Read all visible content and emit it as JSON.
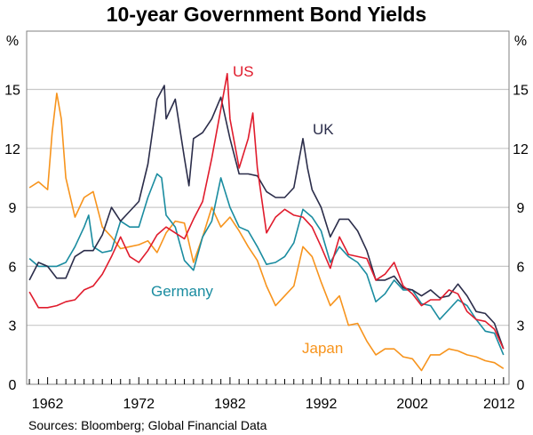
{
  "chart_data": {
    "type": "line",
    "title": "10-year Government Bond Yields",
    "ylabel_left": "%",
    "ylabel_right": "%",
    "source": "Sources: Bloomberg; Global Financial Data",
    "xlim": [
      1959.7,
      2012.6
    ],
    "ylim": [
      0,
      18
    ],
    "yticks": [
      0,
      3,
      6,
      9,
      12,
      15
    ],
    "xticks": [
      1962,
      1972,
      1982,
      1992,
      2002,
      2012
    ],
    "grid": true,
    "legend": "inline labels",
    "series": [
      {
        "name": "Japan",
        "color": "#f7941d",
        "x": [
          1960,
          1961,
          1962,
          1962.5,
          1963,
          1963.5,
          1964,
          1965,
          1966,
          1967,
          1968,
          1969,
          1970,
          1971,
          1972,
          1973,
          1974,
          1975,
          1976,
          1977,
          1978,
          1979,
          1980,
          1981,
          1982,
          1983,
          1984,
          1985,
          1986,
          1987,
          1988,
          1989,
          1990,
          1991,
          1992,
          1993,
          1994,
          1995,
          1996,
          1997,
          1998,
          1999,
          2000,
          2001,
          2002,
          2003,
          2004,
          2005,
          2006,
          2007,
          2008,
          2009,
          2010,
          2011,
          2012
        ],
        "y": [
          10.0,
          10.3,
          9.9,
          12.8,
          14.8,
          13.5,
          10.5,
          8.5,
          9.5,
          9.8,
          8.0,
          7.5,
          6.9,
          7.0,
          7.1,
          7.3,
          6.7,
          7.7,
          8.3,
          8.2,
          6.2,
          7.5,
          9.0,
          8.0,
          8.5,
          7.8,
          7.0,
          6.3,
          5.0,
          4.0,
          4.5,
          5.0,
          7.0,
          6.5,
          5.2,
          4.0,
          4.5,
          3.0,
          3.1,
          2.2,
          1.5,
          1.8,
          1.8,
          1.4,
          1.3,
          0.7,
          1.5,
          1.5,
          1.8,
          1.7,
          1.5,
          1.4,
          1.2,
          1.1,
          0.8
        ]
      },
      {
        "name": "Germany",
        "color": "#1a8ca0",
        "x": [
          1960,
          1961,
          1962,
          1963,
          1964,
          1965,
          1966,
          1966.5,
          1967,
          1968,
          1969,
          1970,
          1971,
          1972,
          1973,
          1974,
          1974.5,
          1975,
          1976,
          1977,
          1978,
          1979,
          1980,
          1981,
          1982,
          1983,
          1984,
          1985,
          1986,
          1987,
          1988,
          1989,
          1990,
          1991,
          1992,
          1993,
          1994,
          1995,
          1996,
          1997,
          1998,
          1999,
          2000,
          2001,
          2002,
          2003,
          2004,
          2005,
          2006,
          2007,
          2008,
          2009,
          2010,
          2011,
          2012
        ],
        "y": [
          6.4,
          6.0,
          6.0,
          6.0,
          6.2,
          7.0,
          8.0,
          8.6,
          7.0,
          6.7,
          6.8,
          8.3,
          8.0,
          8.0,
          9.5,
          10.7,
          10.5,
          8.6,
          8.0,
          6.3,
          5.8,
          7.5,
          8.3,
          10.5,
          9.0,
          8.0,
          7.8,
          7.0,
          6.1,
          6.2,
          6.5,
          7.2,
          8.9,
          8.5,
          7.8,
          6.2,
          7.0,
          6.5,
          6.2,
          5.6,
          4.2,
          4.6,
          5.3,
          4.8,
          4.8,
          4.1,
          4.0,
          3.3,
          3.8,
          4.3,
          4.0,
          3.3,
          2.7,
          2.6,
          1.5
        ]
      },
      {
        "name": "UK",
        "color": "#2b2d4a",
        "x": [
          1960,
          1961,
          1962,
          1963,
          1964,
          1965,
          1966,
          1967,
          1968,
          1969,
          1970,
          1971,
          1972,
          1973,
          1974,
          1974.8,
          1975,
          1976,
          1977,
          1977.5,
          1978,
          1979,
          1980,
          1981,
          1982,
          1983,
          1984,
          1985,
          1986,
          1987,
          1988,
          1989,
          1990,
          1990.5,
          1991,
          1992,
          1993,
          1994,
          1995,
          1996,
          1997,
          1998,
          1999,
          2000,
          2001,
          2002,
          2003,
          2004,
          2005,
          2006,
          2007,
          2008,
          2009,
          2010,
          2011,
          2012
        ],
        "y": [
          5.3,
          6.2,
          6.0,
          5.4,
          5.4,
          6.5,
          6.8,
          6.8,
          7.6,
          9.0,
          8.3,
          8.8,
          9.3,
          11.2,
          14.5,
          15.2,
          13.5,
          14.5,
          11.5,
          10.1,
          12.5,
          12.8,
          13.5,
          14.6,
          12.5,
          10.7,
          10.7,
          10.6,
          9.8,
          9.5,
          9.5,
          10.0,
          12.5,
          11.0,
          9.9,
          9.0,
          7.5,
          8.4,
          8.4,
          7.8,
          6.8,
          5.3,
          5.3,
          5.5,
          4.9,
          4.8,
          4.5,
          4.8,
          4.4,
          4.5,
          5.1,
          4.5,
          3.7,
          3.6,
          3.1,
          1.8
        ]
      },
      {
        "name": "US",
        "color": "#e01b2c",
        "x": [
          1960,
          1961,
          1962,
          1963,
          1964,
          1965,
          1966,
          1967,
          1968,
          1969,
          1970,
          1971,
          1972,
          1973,
          1974,
          1975,
          1976,
          1977,
          1978,
          1979,
          1980,
          1981,
          1981.7,
          1982,
          1983,
          1984,
          1984.5,
          1985,
          1986,
          1987,
          1988,
          1989,
          1990,
          1991,
          1992,
          1993,
          1994,
          1995,
          1996,
          1997,
          1998,
          1999,
          2000,
          2001,
          2002,
          2003,
          2004,
          2005,
          2006,
          2007,
          2008,
          2009,
          2010,
          2011,
          2012
        ],
        "y": [
          4.7,
          3.9,
          3.9,
          4.0,
          4.2,
          4.3,
          4.8,
          5.0,
          5.6,
          6.5,
          7.5,
          6.5,
          6.2,
          6.8,
          7.6,
          8.0,
          7.7,
          7.4,
          8.4,
          9.3,
          11.5,
          14.0,
          15.8,
          13.5,
          11.0,
          12.5,
          13.8,
          11.0,
          7.7,
          8.5,
          8.9,
          8.6,
          8.5,
          8.0,
          7.0,
          5.9,
          7.5,
          6.6,
          6.5,
          6.4,
          5.3,
          5.6,
          6.2,
          5.0,
          4.6,
          4.0,
          4.3,
          4.3,
          4.8,
          4.6,
          3.7,
          3.3,
          3.2,
          2.8,
          1.8
        ]
      }
    ]
  }
}
